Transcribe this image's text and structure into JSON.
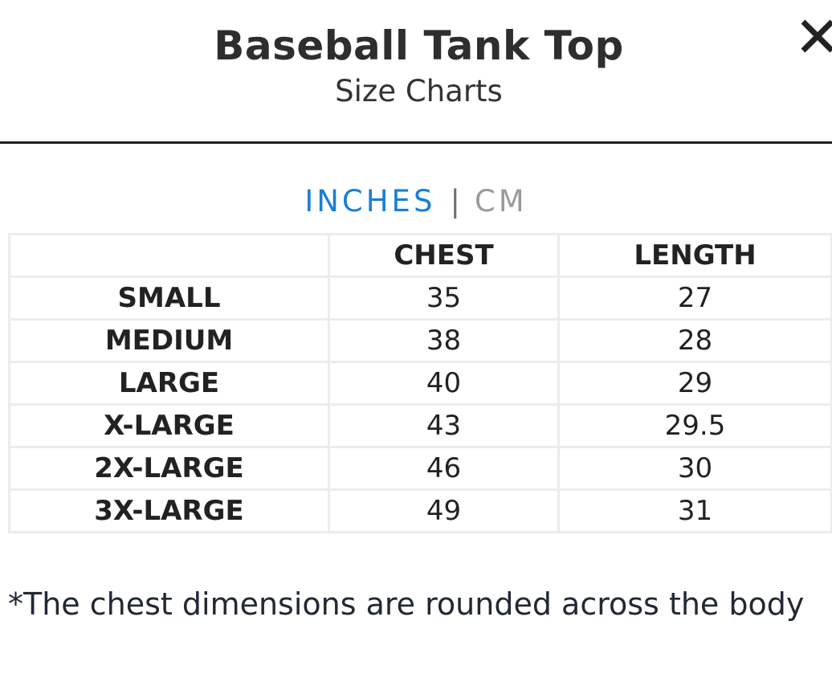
{
  "header": {
    "title": "Baseball Tank Top",
    "subtitle": "Size Charts",
    "close_icon": "close-icon"
  },
  "units": {
    "inches_label": "INCHES",
    "separator": "|",
    "cm_label": "CM",
    "selected": "INCHES",
    "active_color": "#1a7fd6",
    "inactive_color": "#9a9a9a"
  },
  "table": {
    "columns": [
      "",
      "CHEST",
      "LENGTH"
    ],
    "rows": [
      {
        "size": "SMALL",
        "chest": "35",
        "length": "27"
      },
      {
        "size": "MEDIUM",
        "chest": "38",
        "length": "28"
      },
      {
        "size": "LARGE",
        "chest": "40",
        "length": "29"
      },
      {
        "size": "X-LARGE",
        "chest": "43",
        "length": "29.5"
      },
      {
        "size": "2X-LARGE",
        "chest": "46",
        "length": "30"
      },
      {
        "size": "3X-LARGE",
        "chest": "49",
        "length": "31"
      }
    ]
  },
  "footnote": "*The chest dimensions are rounded across the body"
}
